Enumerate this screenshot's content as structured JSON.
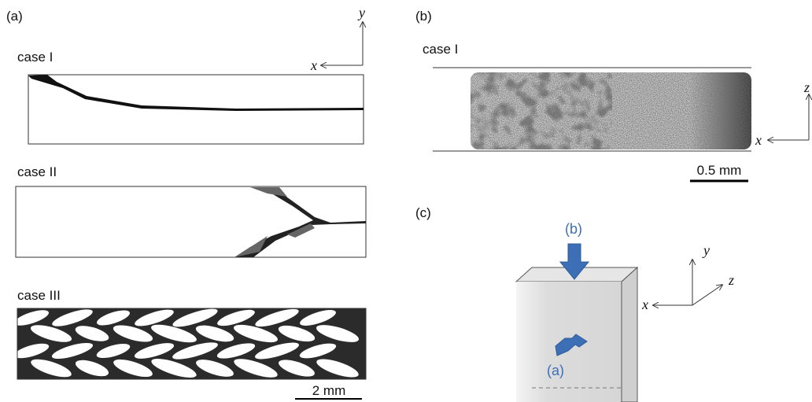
{
  "panel_a": {
    "label": "(a)",
    "axes": {
      "x": "x",
      "y": "y"
    },
    "cases": [
      "case I",
      "case II",
      "case III"
    ],
    "scale_bar": "2 mm"
  },
  "panel_b": {
    "label": "(b)",
    "case": "case I",
    "axes": {
      "x": "x",
      "z": "z"
    },
    "scale_bar": "0.5 mm"
  },
  "panel_c": {
    "label": "(c)",
    "arrow_labels": [
      "(b)",
      "(a)"
    ],
    "axes": {
      "x": "x",
      "y": "y",
      "z": "z"
    }
  }
}
